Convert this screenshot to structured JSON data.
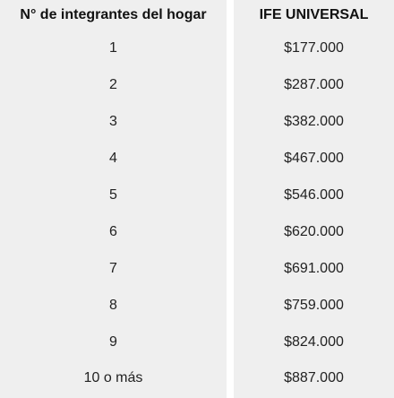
{
  "table": {
    "headers": {
      "members": "N° de integrantes del hogar",
      "ife": "IFE UNIVERSAL"
    },
    "rows": [
      {
        "members": "1",
        "ife": "$177.000"
      },
      {
        "members": "2",
        "ife": "$287.000"
      },
      {
        "members": "3",
        "ife": "$382.000"
      },
      {
        "members": "4",
        "ife": "$467.000"
      },
      {
        "members": "5",
        "ife": "$546.000"
      },
      {
        "members": "6",
        "ife": "$620.000"
      },
      {
        "members": "7",
        "ife": "$691.000"
      },
      {
        "members": "8",
        "ife": "$759.000"
      },
      {
        "members": "9",
        "ife": "$824.000"
      },
      {
        "members": "10 o más",
        "ife": "$887.000"
      }
    ]
  }
}
